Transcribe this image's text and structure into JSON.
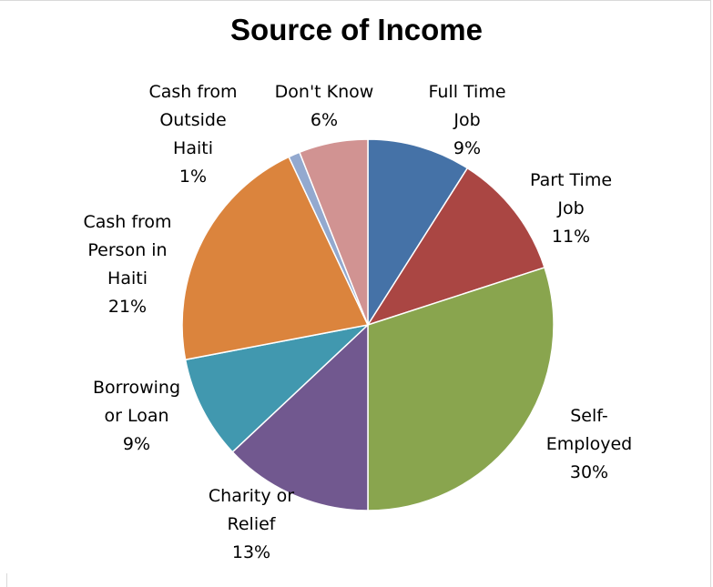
{
  "chart_data": {
    "type": "pie",
    "title": "Source of Income",
    "legend": "none",
    "slices": [
      {
        "label": [
          "Full Time",
          "Job"
        ],
        "value": 9,
        "value_label": "9%",
        "color": "#4572A7"
      },
      {
        "label": [
          "Part Time",
          "Job"
        ],
        "value": 11,
        "value_label": "11%",
        "color": "#AA4643"
      },
      {
        "label": [
          "Self-",
          "Employed"
        ],
        "value": 30,
        "value_label": "30%",
        "color": "#89A54E"
      },
      {
        "label": [
          "Charity or",
          "Relief"
        ],
        "value": 13,
        "value_label": "13%",
        "color": "#71588F"
      },
      {
        "label": [
          "Borrowing",
          "or Loan"
        ],
        "value": 9,
        "value_label": "9%",
        "color": "#4198AF"
      },
      {
        "label": [
          "Cash from",
          "Person in",
          "Haiti"
        ],
        "value": 21,
        "value_label": "21%",
        "color": "#DB843D"
      },
      {
        "label": [
          "Cash from",
          "Outside",
          "Haiti"
        ],
        "value": 1,
        "value_label": "1%",
        "color": "#93A9CF"
      },
      {
        "label": [
          "Don't Know"
        ],
        "value": 6,
        "value_label": "6%",
        "color": "#D19392"
      }
    ]
  }
}
